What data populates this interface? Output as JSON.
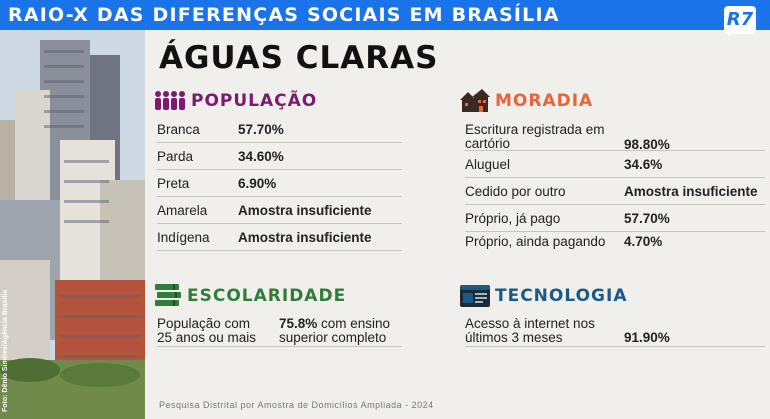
{
  "header": {
    "title": "RAIO-X DAS DIFERENÇAS SOCIAIS EM BRASÍLIA",
    "logo": "R7"
  },
  "photo": {
    "credit": "Foto: Dênio Simões/Agência Brasília"
  },
  "page_title": "ÁGUAS CLARAS",
  "populacao": {
    "label": "POPULAÇÃO",
    "icon": "people-icon",
    "color": "#7b1a6e",
    "rows": [
      {
        "key": "Branca",
        "value": "57.70%"
      },
      {
        "key": "Parda",
        "value": "34.60%"
      },
      {
        "key": "Preta",
        "value": "6.90%"
      },
      {
        "key": "Amarela",
        "value": "Amostra insuficiente"
      },
      {
        "key": "Indígena",
        "value": "Amostra insuficiente"
      }
    ]
  },
  "moradia": {
    "label": "MORADIA",
    "icon": "houses-icon",
    "color": "#e8643a",
    "rows": [
      {
        "key": "Escritura registrada em",
        "key2": "cartório",
        "value": "98.80%"
      },
      {
        "key": "Aluguel",
        "value": "34.6%"
      },
      {
        "key": "Cedido por outro",
        "value": "Amostra insuficiente"
      },
      {
        "key": "Próprio, já pago",
        "value": "57.70%"
      },
      {
        "key": "Próprio, ainda pagando",
        "value": "4.70%"
      }
    ]
  },
  "escolaridade": {
    "label": "ESCOLARIDADE",
    "icon": "books-icon",
    "color": "#2f7d3a",
    "key_line1": "População com",
    "key_line2": "25 anos ou mais",
    "value_bold": "75.8%",
    "value_rest": " com ensino",
    "value_line2": "superior completo"
  },
  "tecnologia": {
    "label": "TECNOLOGIA",
    "icon": "browser-icon",
    "color": "#1a5a8a",
    "key_line1": "Acesso à internet nos",
    "key_line2": "últimos 3 meses",
    "value": "91.90%"
  },
  "source": "Pesquisa Distrital por Amostra de Domicílios Ampliada - 2024"
}
